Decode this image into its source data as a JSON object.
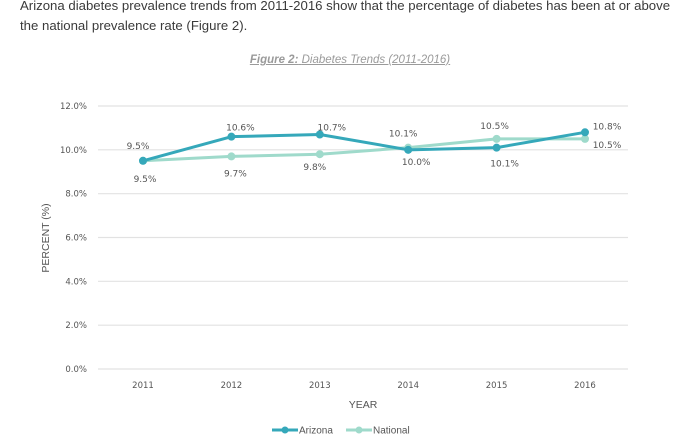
{
  "intro_text": "Arizona diabetes prevalence trends from 2011-2016 show that the percentage of diabetes has been at or above the national prevalence rate (Figure 2).",
  "figure": {
    "number_label": "Figure 2:",
    "title_label": "Diabetes Trends (2011-2016)"
  },
  "chart_data": {
    "type": "line",
    "title": "Figure 2: Diabetes Trends (2011-2016)",
    "xlabel": "YEAR",
    "ylabel": "PERCENT (%)",
    "categories": [
      "2011",
      "2012",
      "2013",
      "2014",
      "2015",
      "2016"
    ],
    "ylim": [
      0,
      12
    ],
    "yticks": [
      0,
      2,
      4,
      6,
      8,
      10,
      12
    ],
    "ytick_labels": [
      "0.0%",
      "2.0%",
      "4.0%",
      "6.0%",
      "8.0%",
      "10.0%",
      "12.0%"
    ],
    "grid": true,
    "legend": "bottom",
    "series": [
      {
        "name": "Arizona",
        "color": "#35a8ba",
        "values": [
          9.5,
          10.6,
          10.7,
          10.0,
          10.1,
          10.8
        ],
        "labels": [
          "9.5%",
          "10.6%",
          "10.7%",
          "10.0%",
          "10.1%",
          "10.8%"
        ]
      },
      {
        "name": "National",
        "color": "#9fdacb",
        "values": [
          9.5,
          9.7,
          9.8,
          10.1,
          10.5,
          10.5
        ],
        "labels": [
          "9.5%",
          "9.7%",
          "9.8%",
          "10.1%",
          "10.5%",
          "10.5%"
        ]
      }
    ]
  }
}
